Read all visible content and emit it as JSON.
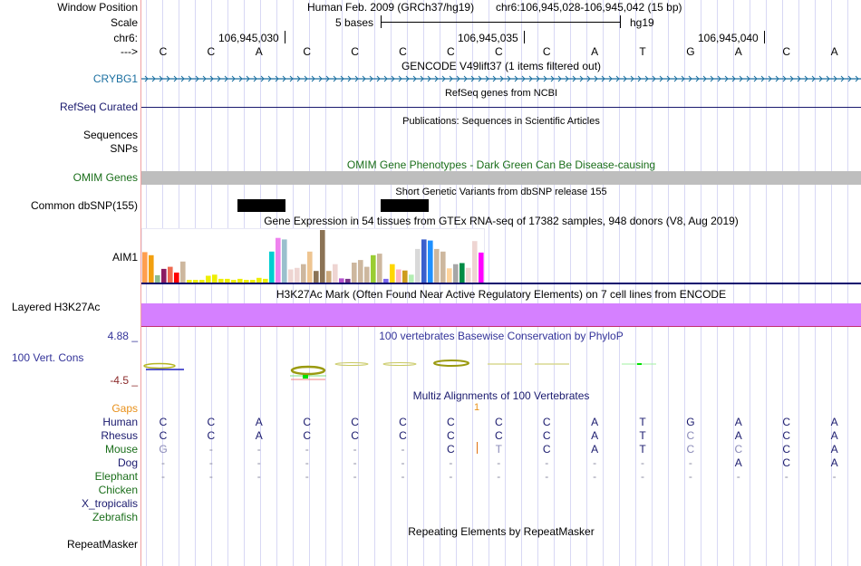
{
  "header": {
    "window_position_label": "Window Position",
    "scale_label": "Scale",
    "chrom_label": "chr6:",
    "strand_label": "--->",
    "assembly_title": "Human Feb. 2009 (GRCh37/hg19)",
    "position": "chr6:106,945,028-106,945,042 (15 bp)",
    "scale_text": "5 bases",
    "scale_db": "hg19",
    "coord_ticks": [
      "106,945,030",
      "106,945,035",
      "106,945,040"
    ]
  },
  "sequence": [
    "C",
    "C",
    "A",
    "C",
    "C",
    "C",
    "C",
    "C",
    "C",
    "A",
    "T",
    "G",
    "A",
    "C",
    "A"
  ],
  "tracks": {
    "gencode": {
      "title": "GENCODE V49lift37 (1 items filtered out)",
      "gene_label": "CRYBG1",
      "color": "#1a6fa0"
    },
    "refseq": {
      "label": "RefSeq Curated",
      "title": "RefSeq genes from NCBI",
      "color": "#1a1a6e"
    },
    "publications": {
      "title": "Publications: Sequences in Scientific Articles",
      "label": "Sequences"
    },
    "snps": {
      "label": "SNPs"
    },
    "omim": {
      "title": "OMIM Gene Phenotypes - Dark Green Can Be Disease-causing",
      "label": "OMIM Genes",
      "color": "#1a6e1a",
      "bar_color": "#bebebe"
    },
    "dbsnp": {
      "title": "Short Genetic Variants from dbSNP release 155",
      "label": "Common dbSNP(155)"
    },
    "gtex": {
      "title": "Gene Expression in 54 tissues from GTEx RNA-seq of 17382 samples, 948 donors (V8, Aug 2019)",
      "label": "AIM1",
      "bars": [
        {
          "v": 0.58,
          "c": "#ff9f4f"
        },
        {
          "v": 0.52,
          "c": "#f2a00f"
        },
        {
          "v": 0.14,
          "c": "#8fbc8f"
        },
        {
          "v": 0.26,
          "c": "#8b1c62"
        },
        {
          "v": 0.3,
          "c": "#ee6a50"
        },
        {
          "v": 0.19,
          "c": "#ff0000"
        },
        {
          "v": 0.4,
          "c": "#cdb79e"
        },
        {
          "v": 0.05,
          "c": "#eeee00"
        },
        {
          "v": 0.05,
          "c": "#eeee00"
        },
        {
          "v": 0.05,
          "c": "#eeee00"
        },
        {
          "v": 0.13,
          "c": "#eeee00"
        },
        {
          "v": 0.15,
          "c": "#eeee00"
        },
        {
          "v": 0.07,
          "c": "#eeee00"
        },
        {
          "v": 0.07,
          "c": "#eeee00"
        },
        {
          "v": 0.05,
          "c": "#eeee00"
        },
        {
          "v": 0.07,
          "c": "#eeee00"
        },
        {
          "v": 0.05,
          "c": "#eeee00"
        },
        {
          "v": 0.05,
          "c": "#eeee00"
        },
        {
          "v": 0.09,
          "c": "#eeee00"
        },
        {
          "v": 0.07,
          "c": "#eeee00"
        },
        {
          "v": 0.59,
          "c": "#00ced1"
        },
        {
          "v": 0.85,
          "c": "#ee82ee"
        },
        {
          "v": 0.82,
          "c": "#9ac0cd"
        },
        {
          "v": 0.25,
          "c": "#eed5d2"
        },
        {
          "v": 0.28,
          "c": "#eed5d2"
        },
        {
          "v": 0.35,
          "c": "#cdb79e"
        },
        {
          "v": 0.59,
          "c": "#eec591"
        },
        {
          "v": 0.22,
          "c": "#8b7355"
        },
        {
          "v": 1.0,
          "c": "#8b7355"
        },
        {
          "v": 0.22,
          "c": "#cdaa7d"
        },
        {
          "v": 0.35,
          "c": "#eed5d2"
        },
        {
          "v": 0.08,
          "c": "#b452cd"
        },
        {
          "v": 0.07,
          "c": "#7a378b"
        },
        {
          "v": 0.38,
          "c": "#cdb79e"
        },
        {
          "v": 0.43,
          "c": "#cdb79e"
        },
        {
          "v": 0.3,
          "c": "#cdb79e"
        },
        {
          "v": 0.52,
          "c": "#9acd32"
        },
        {
          "v": 0.55,
          "c": "#cdb79e"
        },
        {
          "v": 0.07,
          "c": "#7a67ee"
        },
        {
          "v": 0.35,
          "c": "#ffd700"
        },
        {
          "v": 0.25,
          "c": "#ffb6c1"
        },
        {
          "v": 0.23,
          "c": "#cd9b1d"
        },
        {
          "v": 0.15,
          "c": "#b4eeb4"
        },
        {
          "v": 0.64,
          "c": "#d9d9d9"
        },
        {
          "v": 0.82,
          "c": "#3a5fcd"
        },
        {
          "v": 0.8,
          "c": "#1e90ff"
        },
        {
          "v": 0.64,
          "c": "#cdb79e"
        },
        {
          "v": 0.59,
          "c": "#cdb79e"
        },
        {
          "v": 0.27,
          "c": "#ffd39b"
        },
        {
          "v": 0.35,
          "c": "#a6a6a6"
        },
        {
          "v": 0.37,
          "c": "#008b45"
        },
        {
          "v": 0.28,
          "c": "#eed5d2"
        },
        {
          "v": 0.79,
          "c": "#eed5d2"
        },
        {
          "v": 0.57,
          "c": "#ff00ff"
        }
      ]
    },
    "h3k27ac": {
      "title": "H3K27Ac Mark (Often Found Near Active Regulatory Elements) on 7 cell lines from ENCODE",
      "label": "Layered H3K27Ac",
      "color": "#d580ff"
    },
    "phylop": {
      "title": "100 vertebrates Basewise Conservation by PhyloP",
      "label": "100 Vert. Cons",
      "max_label": "4.88 _",
      "min_label": "-4.5 _",
      "color": "#333399"
    },
    "multiz": {
      "title": "Multiz Alignments of 100 Vertebrates",
      "gaps_label": "Gaps",
      "gap_count": "1",
      "species": [
        {
          "name": "Human",
          "color": "#1a1a6e",
          "bases": [
            "C",
            "C",
            "A",
            "C",
            "C",
            "C",
            "C",
            "C",
            "C",
            "A",
            "T",
            "G",
            "A",
            "C",
            "A"
          ]
        },
        {
          "name": "Rhesus",
          "color": "#1a1a6e",
          "bases": [
            "C",
            "C",
            "A",
            "C",
            "C",
            "C",
            "C",
            "C",
            "C",
            "A",
            "T",
            "C",
            "A",
            "C",
            "A"
          ]
        },
        {
          "name": "Mouse",
          "color": "#1a6e1a",
          "bases": [
            "G",
            "-",
            "-",
            "-",
            "-",
            "-",
            "C",
            "T",
            "C",
            "A",
            "T",
            "C",
            "C",
            "C",
            "A"
          ]
        },
        {
          "name": "Dog",
          "color": "#1a1a6e",
          "bases": [
            "-",
            "-",
            "-",
            "-",
            "-",
            "-",
            "-",
            "-",
            "-",
            "-",
            "-",
            "-",
            "A",
            "C",
            "A"
          ]
        },
        {
          "name": "Elephant",
          "color": "#1a6e1a",
          "bases": [
            "-",
            "-",
            "-",
            "-",
            "-",
            "-",
            "-",
            "-",
            "-",
            "-",
            "-",
            "-",
            "-",
            "-",
            "-"
          ]
        },
        {
          "name": "Chicken",
          "color": "#1a6e1a",
          "bases": []
        },
        {
          "name": "X_tropicalis",
          "color": "#1a1a6e",
          "bases": []
        },
        {
          "name": "Zebrafish",
          "color": "#1a6e1a",
          "bases": []
        }
      ]
    },
    "repeatmasker": {
      "title": "Repeating Elements by RepeatMasker",
      "label": "RepeatMasker"
    }
  }
}
